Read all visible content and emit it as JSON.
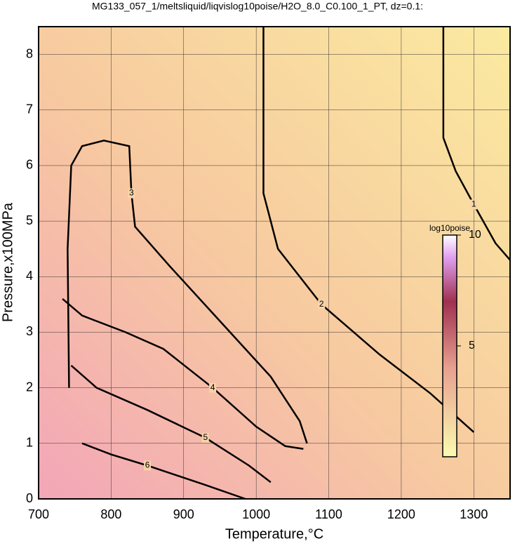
{
  "chart_data": {
    "type": "contour",
    "title": "MG133_057_1/meltsliquid/liqvislog10poise/H2O_8.0_C0.100_1_PT, dz=0.1:",
    "xlabel": "Temperature,°C",
    "ylabel": "Pressure,x100MPa",
    "xlim": [
      700,
      1350
    ],
    "ylim": [
      0,
      8.5
    ],
    "xticks": [
      700,
      800,
      900,
      1000,
      1100,
      1200,
      1300
    ],
    "yticks": [
      0,
      1,
      2,
      3,
      4,
      5,
      6,
      7,
      8
    ],
    "grid": true,
    "colorbar": {
      "label": "log10poise",
      "lim": [
        0,
        10
      ],
      "ticks": [
        5,
        10
      ]
    },
    "series": [
      {
        "name": "1",
        "x": [
          1258,
          1258,
          1275,
          1300,
          1330,
          1350
        ],
        "values": [
          8.5,
          6.5,
          5.9,
          5.3,
          4.6,
          4.3
        ]
      },
      {
        "name": "2",
        "x": [
          1010,
          1010,
          1030,
          1090,
          1170,
          1240,
          1300
        ],
        "values": [
          8.5,
          5.5,
          4.5,
          3.5,
          2.6,
          1.9,
          1.2
        ]
      },
      {
        "name": "3",
        "x": [
          742,
          740,
          745,
          760,
          790,
          825,
          828,
          833,
          880,
          950,
          1020,
          1060,
          1070
        ],
        "values": [
          2.0,
          4.5,
          6.0,
          6.35,
          6.45,
          6.35,
          5.5,
          4.9,
          4.2,
          3.2,
          2.2,
          1.4,
          1.0
        ]
      },
      {
        "name": "4",
        "x": [
          733,
          760,
          820,
          872,
          940,
          1000,
          1040,
          1065
        ],
        "values": [
          3.6,
          3.3,
          3.0,
          2.7,
          2.0,
          1.3,
          0.95,
          0.9
        ]
      },
      {
        "name": "5",
        "x": [
          745,
          780,
          850,
          930,
          990,
          1020
        ],
        "values": [
          2.4,
          2.0,
          1.6,
          1.1,
          0.6,
          0.3
        ]
      },
      {
        "name": "6",
        "x": [
          760,
          800,
          850,
          930,
          985
        ],
        "values": [
          1.0,
          0.8,
          0.6,
          0.25,
          0
        ]
      }
    ]
  }
}
